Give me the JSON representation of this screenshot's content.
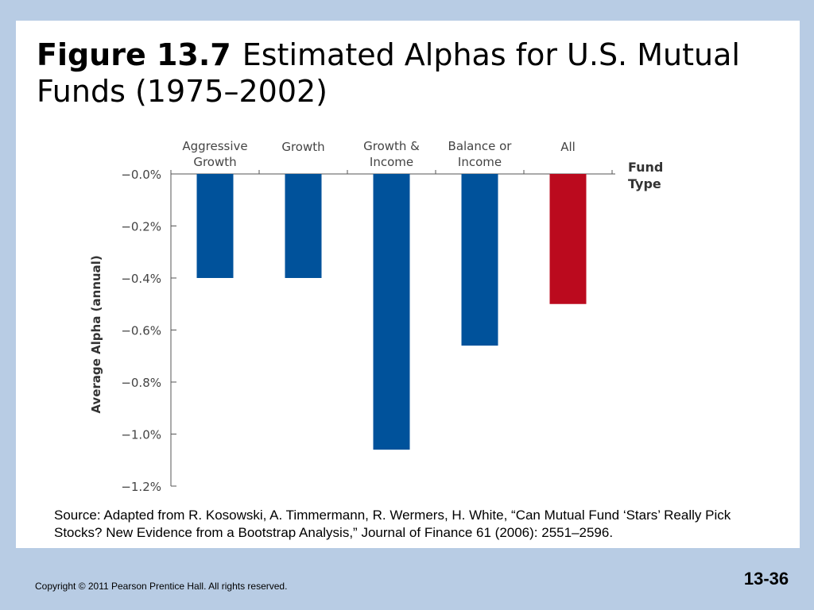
{
  "slide": {
    "title_bold": "Figure 13.7",
    "title_rest": "Estimated Alphas for U.S. Mutual Funds (1975–2002)",
    "source": "Source: Adapted from R. Kosowski, A. Timmermann, R. Wermers, H. White, “Can Mutual Fund ‘Stars’ Really Pick Stocks? New Evidence from a Bootstrap Analysis,” Journal of Finance 61 (2006): 2551–2596.",
    "copyright": "Copyright © 2011 Pearson Prentice Hall. All rights reserved.",
    "slide_number": "13-36"
  },
  "chart_data": {
    "type": "bar",
    "categories": [
      [
        "Aggressive",
        "Growth"
      ],
      [
        "Growth"
      ],
      [
        "Growth &",
        "Income"
      ],
      [
        "Balance or",
        "Income"
      ],
      [
        "All"
      ]
    ],
    "values": [
      -0.4,
      -0.4,
      -1.06,
      -0.66,
      -0.5
    ],
    "bar_colors": [
      "#00529b",
      "#00529b",
      "#00529b",
      "#00529b",
      "#bb0a1e"
    ],
    "ylabel": "Average Alpha (annual)",
    "xlabel": [
      "Fund",
      "Type"
    ],
    "ylim": [
      -1.2,
      0.0
    ],
    "yticks": [
      0.0,
      -0.2,
      -0.4,
      -0.6,
      -0.8,
      -1.0,
      -1.2
    ],
    "ytick_labels": [
      "−0.0%",
      "−0.2%",
      "−0.4%",
      "−0.6%",
      "−0.8%",
      "−1.0%",
      "−1.2%"
    ],
    "xaxis_position": "top",
    "grid": false,
    "legend": "none"
  }
}
